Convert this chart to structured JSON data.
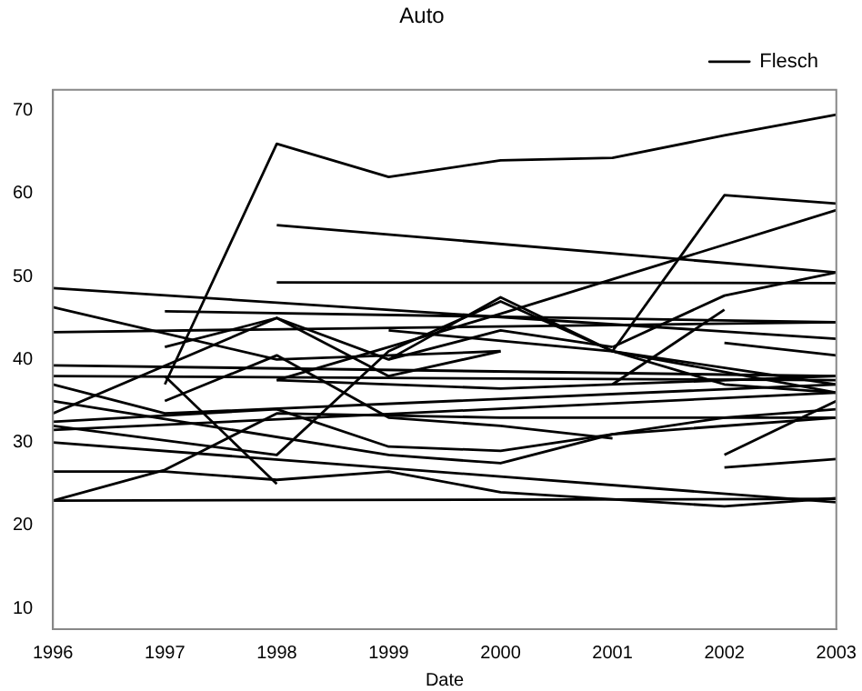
{
  "chart_data": {
    "type": "line",
    "title": "Auto",
    "xlabel": "Date",
    "xlim": [
      1996,
      2003
    ],
    "xticks": [
      1996,
      1997,
      1998,
      1999,
      2000,
      2001,
      2002,
      2003
    ],
    "ylim": [
      7.5,
      72.5
    ],
    "yticks": [
      10,
      20,
      30,
      40,
      50,
      60,
      70
    ],
    "grid": false,
    "legend": "top right",
    "marker": "none",
    "line_style": "solid",
    "series": [
      {
        "name": "Flesch",
        "color": "#000000",
        "x": [
          1997,
          1998,
          1999,
          2000,
          2001,
          2002,
          2003
        ],
        "values": [
          37,
          66,
          62,
          64,
          64.3,
          67,
          69.5
        ]
      },
      {
        "color": "#000000",
        "x": [
          1998,
          2003
        ],
        "values": [
          56.2,
          50.5
        ]
      },
      {
        "color": "#000000",
        "x": [
          1998,
          2003
        ],
        "values": [
          49.3,
          49.2
        ]
      },
      {
        "color": "#000000",
        "x": [
          2001,
          2002,
          2003
        ],
        "values": [
          41,
          59.8,
          58.8
        ]
      },
      {
        "color": "#000000",
        "x": [
          1998,
          2000,
          2003
        ],
        "values": [
          37.5,
          45.5,
          58
        ]
      },
      {
        "color": "#000000",
        "x": [
          1996,
          2003
        ],
        "values": [
          48.6,
          42.5
        ]
      },
      {
        "color": "#000000",
        "x": [
          1996,
          1998,
          2000
        ],
        "values": [
          46.3,
          40,
          41
        ]
      },
      {
        "color": "#000000",
        "x": [
          2001,
          2002,
          2003
        ],
        "values": [
          41.5,
          47.7,
          50.5
        ]
      },
      {
        "color": "#000000",
        "x": [
          1997,
          2003
        ],
        "values": [
          45.8,
          44.5
        ]
      },
      {
        "color": "#000000",
        "x": [
          1996,
          2003
        ],
        "values": [
          43.3,
          44.5
        ]
      },
      {
        "color": "#000000",
        "x": [
          1997,
          1998,
          1999,
          2000
        ],
        "values": [
          41.5,
          45,
          38,
          41
        ]
      },
      {
        "color": "#000000",
        "x": [
          1999,
          2000,
          2001,
          2002,
          2003
        ],
        "values": [
          40,
          47.5,
          41,
          37,
          36
        ]
      },
      {
        "color": "#000000",
        "x": [
          1996,
          2003
        ],
        "values": [
          39.3,
          38
        ]
      },
      {
        "color": "#000000",
        "x": [
          1996,
          1997,
          1998,
          2000,
          2003
        ],
        "values": [
          23,
          26.7,
          33.5,
          33,
          33
        ]
      },
      {
        "color": "#000000",
        "x": [
          1996,
          2003
        ],
        "values": [
          23,
          23.2
        ]
      },
      {
        "color": "#000000",
        "x": [
          1996,
          1997,
          1998,
          1999,
          2000,
          2002,
          2003
        ],
        "values": [
          26.5,
          26.5,
          25.5,
          26.5,
          24,
          22.3,
          23.3
        ]
      },
      {
        "color": "#000000",
        "x": [
          1996,
          2003
        ],
        "values": [
          30,
          22.8
        ]
      },
      {
        "color": "#000000",
        "x": [
          1997,
          1998
        ],
        "values": [
          38,
          25
        ]
      },
      {
        "color": "#000000",
        "x": [
          1996,
          1998,
          1999,
          2000,
          2001
        ],
        "values": [
          33.5,
          45,
          40,
          43.5,
          41.5
        ]
      },
      {
        "color": "#000000",
        "x": [
          1996,
          2003
        ],
        "values": [
          31.5,
          36
        ]
      },
      {
        "color": "#000000",
        "x": [
          1996,
          1998,
          1999,
          2000,
          2001,
          2003
        ],
        "values": [
          32,
          28.5,
          41,
          47,
          41,
          37
        ]
      },
      {
        "color": "#000000",
        "x": [
          2002,
          2003
        ],
        "values": [
          28.5,
          35
        ]
      },
      {
        "color": "#000000",
        "x": [
          2001,
          2002
        ],
        "values": [
          37,
          46
        ]
      },
      {
        "color": "#000000",
        "x": [
          1996,
          1999,
          2000,
          2001,
          2003
        ],
        "values": [
          35,
          28.5,
          27.5,
          31,
          33
        ]
      },
      {
        "color": "#000000",
        "x": [
          1996,
          1997,
          2003
        ],
        "values": [
          37,
          33.5,
          37
        ]
      },
      {
        "color": "#000000",
        "x": [
          1999,
          2001,
          2003
        ],
        "values": [
          43.5,
          41,
          36
        ]
      },
      {
        "color": "#000000",
        "x": [
          1998,
          2000,
          2003
        ],
        "values": [
          37.5,
          36.5,
          38
        ]
      },
      {
        "color": "#000000",
        "x": [
          2002,
          2003
        ],
        "values": [
          42,
          40.5
        ]
      },
      {
        "color": "#000000",
        "x": [
          1996,
          2003
        ],
        "values": [
          38,
          37.5
        ]
      },
      {
        "color": "#000000",
        "x": [
          1997,
          1998,
          1999,
          2000,
          2001
        ],
        "values": [
          35,
          40.5,
          33,
          32,
          30.5
        ]
      },
      {
        "color": "#000000",
        "x": [
          1996,
          1998,
          1999,
          2000,
          2001,
          2002,
          2003
        ],
        "values": [
          32.5,
          34,
          29.5,
          29,
          31,
          33,
          34
        ]
      },
      {
        "color": "#000000",
        "x": [
          2002,
          2003
        ],
        "values": [
          27,
          28
        ]
      }
    ]
  }
}
